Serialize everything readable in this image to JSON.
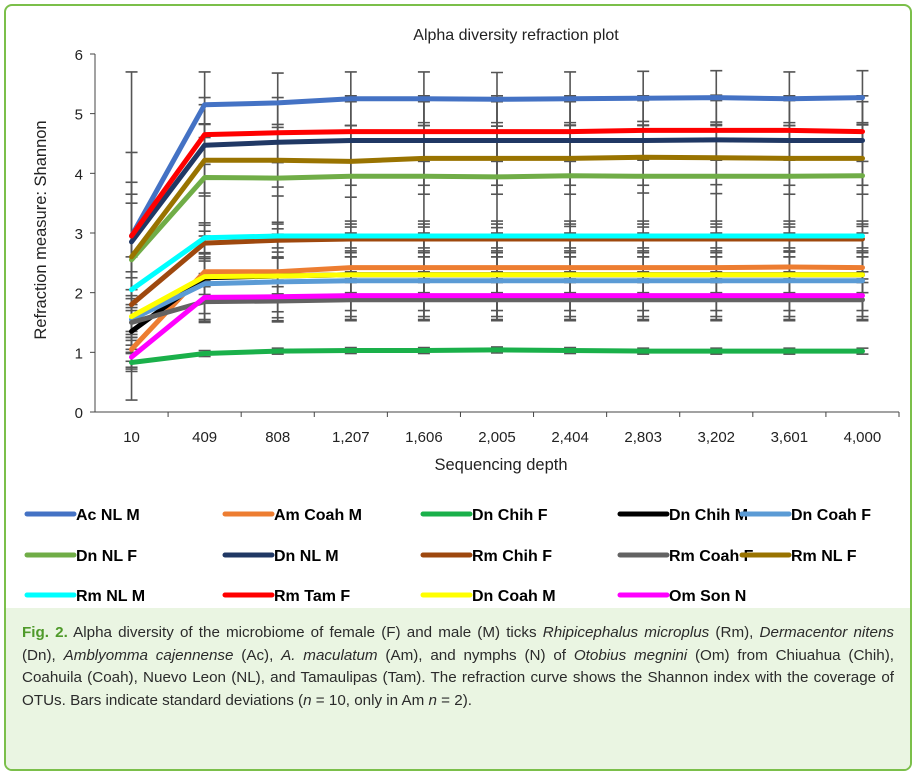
{
  "chart_data": {
    "type": "line",
    "title": "Alpha diversity refraction plot",
    "xlabel": "Sequencing depth",
    "ylabel": "Refraction measure: Shannon",
    "categories": [
      "10",
      "409",
      "808",
      "1,207",
      "1,606",
      "2,005",
      "2,404",
      "2,803",
      "3,202",
      "3,601",
      "4,000"
    ],
    "ylim": [
      0,
      6
    ],
    "yticks": [
      "0",
      "1",
      "2",
      "3",
      "4",
      "5",
      "6"
    ],
    "grid": false,
    "error_bars": true,
    "legend_position": "bottom",
    "series": [
      {
        "name": "Ac NL M",
        "color": "#4472c4",
        "values": [
          2.95,
          5.15,
          5.18,
          5.25,
          5.25,
          5.24,
          5.25,
          5.26,
          5.27,
          5.25,
          5.27
        ],
        "error": [
          2.75,
          0.55,
          0.5,
          0.45,
          0.45,
          0.45,
          0.45,
          0.45,
          0.45,
          0.45,
          0.45
        ]
      },
      {
        "name": "Am Coah M",
        "color": "#ed7d31",
        "values": [
          1.05,
          2.35,
          2.35,
          2.42,
          2.42,
          2.42,
          2.42,
          2.42,
          2.42,
          2.43,
          2.42
        ],
        "error": [
          0.2,
          0.25,
          0.25,
          0.25,
          0.25,
          0.25,
          0.25,
          0.25,
          0.25,
          0.25,
          0.25
        ]
      },
      {
        "name": "Dn Chih F",
        "color": "#1ab04a",
        "values": [
          0.83,
          0.98,
          1.02,
          1.03,
          1.03,
          1.04,
          1.03,
          1.02,
          1.02,
          1.02,
          1.02
        ],
        "error": [
          0.15,
          0.05,
          0.05,
          0.05,
          0.05,
          0.05,
          0.05,
          0.05,
          0.05,
          0.05,
          0.05
        ]
      },
      {
        "name": "Dn Chih M",
        "color": "#000000",
        "values": [
          1.35,
          2.25,
          2.28,
          2.3,
          2.3,
          2.3,
          2.3,
          2.3,
          2.3,
          2.3,
          2.3
        ],
        "error": [
          0.6,
          0.7,
          0.7,
          0.7,
          0.7,
          0.7,
          0.7,
          0.7,
          0.7,
          0.7,
          0.7
        ]
      },
      {
        "name": "Dn Coah F",
        "color": "#5b9bd5",
        "values": [
          1.55,
          2.15,
          2.18,
          2.2,
          2.2,
          2.2,
          2.2,
          2.2,
          2.2,
          2.2,
          2.2
        ],
        "error": [
          0.5,
          0.5,
          0.5,
          0.5,
          0.5,
          0.5,
          0.5,
          0.5,
          0.5,
          0.5,
          0.5
        ]
      },
      {
        "name": "Dn NL F",
        "color": "#70ad47",
        "values": [
          2.55,
          3.93,
          3.92,
          3.95,
          3.95,
          3.94,
          3.96,
          3.95,
          3.95,
          3.95,
          3.96
        ],
        "error": [
          1.3,
          0.9,
          0.85,
          0.85,
          0.85,
          0.85,
          0.85,
          0.85,
          0.85,
          0.85,
          0.85
        ]
      },
      {
        "name": "Dn NL M",
        "color": "#203864",
        "values": [
          2.85,
          4.47,
          4.52,
          4.55,
          4.55,
          4.55,
          4.55,
          4.55,
          4.56,
          4.55,
          4.55
        ],
        "error": [
          1.5,
          0.8,
          0.75,
          0.75,
          0.75,
          0.75,
          0.75,
          0.75,
          0.75,
          0.75,
          0.75
        ]
      },
      {
        "name": "Rm Chih F",
        "color": "#9e480e",
        "values": [
          1.8,
          2.83,
          2.88,
          2.9,
          2.9,
          2.9,
          2.9,
          2.9,
          2.9,
          2.9,
          2.9
        ],
        "error": [
          0.8,
          0.3,
          0.3,
          0.3,
          0.3,
          0.3,
          0.3,
          0.3,
          0.3,
          0.3,
          0.3
        ]
      },
      {
        "name": "Rm Coah F",
        "color": "#636363",
        "values": [
          1.5,
          1.85,
          1.86,
          1.88,
          1.88,
          1.88,
          1.88,
          1.88,
          1.88,
          1.88,
          1.88
        ],
        "error": [
          0.3,
          0.35,
          0.35,
          0.35,
          0.35,
          0.35,
          0.35,
          0.35,
          0.35,
          0.35,
          0.35
        ]
      },
      {
        "name": "Rm NL F",
        "color": "#997300",
        "values": [
          2.6,
          4.22,
          4.22,
          4.2,
          4.25,
          4.25,
          4.25,
          4.27,
          4.26,
          4.25,
          4.25
        ],
        "error": [
          0.9,
          0.6,
          0.6,
          0.6,
          0.6,
          0.6,
          0.6,
          0.6,
          0.6,
          0.6,
          0.6
        ]
      },
      {
        "name": "Rm NL M",
        "color": "#00ffff",
        "values": [
          2.05,
          2.92,
          2.95,
          2.95,
          2.95,
          2.95,
          2.95,
          2.95,
          2.95,
          2.95,
          2.95
        ],
        "error": [
          0.3,
          0.25,
          0.2,
          0.2,
          0.2,
          0.2,
          0.2,
          0.2,
          0.2,
          0.2,
          0.2
        ]
      },
      {
        "name": "Rm Tam F",
        "color": "#ff0000",
        "values": [
          2.95,
          4.65,
          4.68,
          4.7,
          4.7,
          4.7,
          4.7,
          4.72,
          4.72,
          4.72,
          4.7
        ],
        "error": [
          0.7,
          0.5,
          0.5,
          0.5,
          0.5,
          0.5,
          0.5,
          0.5,
          0.5,
          0.5,
          0.5
        ]
      },
      {
        "name": "Dn Coah M",
        "color": "#ffff00",
        "values": [
          1.6,
          2.27,
          2.28,
          2.3,
          2.3,
          2.3,
          2.3,
          2.3,
          2.3,
          2.3,
          2.3
        ],
        "error": [
          0.3,
          0.3,
          0.3,
          0.3,
          0.3,
          0.3,
          0.3,
          0.3,
          0.3,
          0.3,
          0.3
        ]
      },
      {
        "name": "Om Son N",
        "color": "#ff00ff",
        "values": [
          0.92,
          1.92,
          1.93,
          1.95,
          1.95,
          1.95,
          1.95,
          1.95,
          1.95,
          1.95,
          1.95
        ],
        "error": [
          0.2,
          0.4,
          0.4,
          0.4,
          0.4,
          0.4,
          0.4,
          0.4,
          0.4,
          0.4,
          0.4
        ]
      }
    ]
  },
  "caption": {
    "label": "Fig. 2.",
    "text_html": "Alpha diversity of the microbiome of female (F) and male (M) ticks <i>Rhipicephalus microplus</i> (Rm), <i>Dermacentor nitens</i> (Dn), <i>Amblyomma cajennense</i> (Ac), <i>A. maculatum</i> (Am), and nymphs (N) of <i>Otobius megnini</i> (Om) from Chiuahua (Chih), Coahuila (Coah), Nuevo Leon (NL), and Tamaulipas (Tam). The refraction curve shows the Shannon index with the coverage of OTUs. Bars indicate standard deviations (<i>n</i> = 10, only in Am <i>n</i> = 2)."
  },
  "colors": {
    "frame_border": "#7bbf4a",
    "caption_background": "#eaf5e2",
    "caption_label": "#4f9a2a",
    "error_bar": "#555555"
  }
}
